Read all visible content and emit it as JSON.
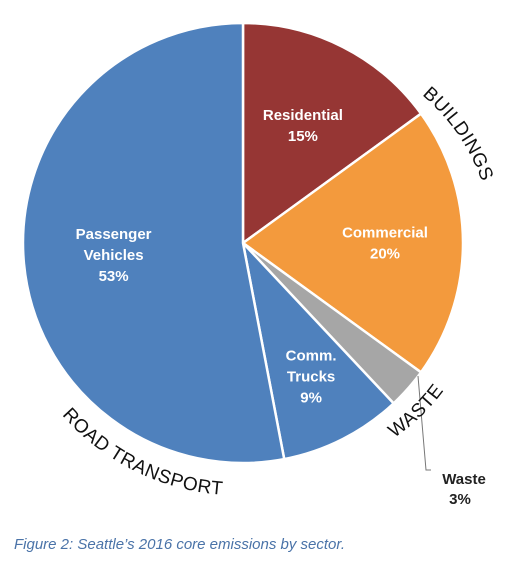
{
  "chart_data": {
    "type": "pie",
    "slices": [
      {
        "label": "Residential",
        "percent_label": "15%",
        "value": 15,
        "color": "#963634"
      },
      {
        "label": "Commercial",
        "percent_label": "20%",
        "value": 20,
        "color": "#f39a3d"
      },
      {
        "label": "Waste",
        "percent_label": "3%",
        "value": 3,
        "color": "#a6a6a6"
      },
      {
        "label": "Comm. Trucks",
        "percent_label": "9%",
        "value": 9,
        "color": "#4f81bd"
      },
      {
        "label": "Passenger Vehicles",
        "percent_label": "53%",
        "value": 53,
        "color": "#4f81bd"
      }
    ],
    "group_labels": {
      "buildings": "BUILDINGS",
      "waste": "WASTE",
      "road_transport": "ROAD TRANSPORT"
    },
    "slice_border_color": "#ffffff"
  },
  "caption": "Figure 2: Seattle’s 2016 core emissions by sector."
}
